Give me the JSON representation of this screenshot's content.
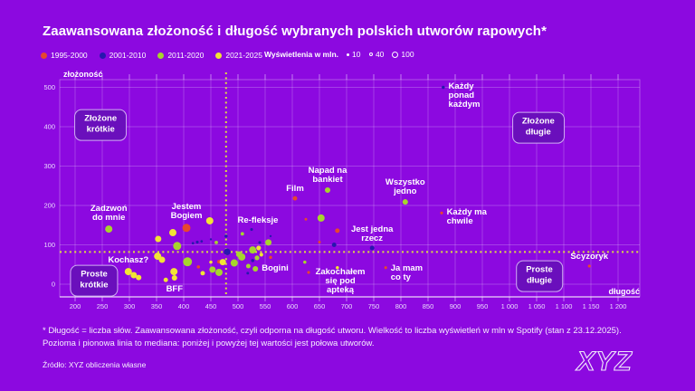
{
  "title": "Zaawansowana złożoność i długość wybranych polskich utworów rapowych*",
  "legend": {
    "periods": [
      {
        "label": "1995-2000",
        "color": "#e8462e"
      },
      {
        "label": "2001-2010",
        "color": "#2817ae"
      },
      {
        "label": "2011-2020",
        "color": "#a6d42e"
      },
      {
        "label": "2021-2025",
        "color": "#f2e434"
      }
    ],
    "size": {
      "title": "Wyświetlenia w mln.",
      "items": [
        {
          "label": "10",
          "mln": 10,
          "filled": true
        },
        {
          "label": "40",
          "mln": 40,
          "filled": false
        },
        {
          "label": "100",
          "mln": 100,
          "filled": false
        }
      ]
    }
  },
  "chart_data": {
    "type": "scatter",
    "xlabel": "długość",
    "ylabel": "złożoność",
    "x_ticks": [
      200,
      250,
      300,
      350,
      400,
      450,
      500,
      550,
      600,
      650,
      700,
      750,
      800,
      850,
      900,
      950,
      1000,
      1050,
      1100,
      1150,
      1200
    ],
    "y_ticks": [
      0,
      100,
      200,
      300,
      400,
      500
    ],
    "x_range": [
      172,
      1240
    ],
    "y_range": [
      -32,
      520
    ],
    "median_x": 478,
    "median_y": 82,
    "grid": true,
    "colors_bg": "#8c09e0",
    "median_color": "#dce23e",
    "quadrants": [
      {
        "label_lines": [
          "Złożone",
          "krótkie"
        ],
        "x": 247,
        "y": 405
      },
      {
        "label_lines": [
          "Złożone",
          "długie"
        ],
        "x": 1053,
        "y": 398
      },
      {
        "label_lines": [
          "Proste",
          "krótkie"
        ],
        "x": 235,
        "y": 9
      },
      {
        "label_lines": [
          "Proste",
          "długie"
        ],
        "x": 1055,
        "y": 21
      }
    ],
    "points": [
      {
        "name": "Zadzwoń do mnie",
        "lines": [
          "Zadzwoń",
          "do mnie"
        ],
        "anchor": "above",
        "period": "2011-2020",
        "x": 262,
        "y": 140,
        "mln": 130
      },
      {
        "name": "Jestem Bogiem",
        "lines": [
          "Jestem",
          "Bogiem"
        ],
        "anchor": "above",
        "period": "1995-2000",
        "x": 405,
        "y": 143,
        "mln": 165
      },
      {
        "name": "Re-fleksje",
        "lines": [
          "Re-fleksje"
        ],
        "anchor": "above",
        "dx": 7,
        "period": "2001-2010",
        "x": 525,
        "y": 139,
        "mln": 20
      },
      {
        "name": "Kochasz?",
        "lines": [
          "Kochasz?"
        ],
        "anchor": "above",
        "period": "2021-2025",
        "x": 298,
        "y": 32,
        "mln": 130
      },
      {
        "period": "2021-2025",
        "x": 308,
        "y": 23,
        "mln": 100
      },
      {
        "period": "2021-2025",
        "x": 317,
        "y": 17,
        "mln": 75
      },
      {
        "name": "BFF",
        "lines": [
          "BFF"
        ],
        "anchor": "below",
        "dy": 3,
        "period": "2021-2025",
        "x": 383,
        "y": 16,
        "mln": 75
      },
      {
        "period": "2021-2025",
        "x": 382,
        "y": 32,
        "mln": 130
      },
      {
        "name": "Bogini",
        "lines": [
          "Bogini"
        ],
        "anchor": "right",
        "period": "2011-2020",
        "x": 532,
        "y": 39,
        "mln": 75
      },
      {
        "name": "Napad na bankiet",
        "lines": [
          "Napad na",
          "bankiet"
        ],
        "anchor": "above",
        "period": "2011-2020",
        "x": 665,
        "y": 239,
        "mln": 75
      },
      {
        "name": "Film",
        "lines": [
          "Film"
        ],
        "anchor": "above",
        "period": "1995-2000",
        "x": 605,
        "y": 218,
        "mln": 50
      },
      {
        "name": "Wszystko jedno",
        "lines": [
          "Wszystko",
          "jedno"
        ],
        "anchor": "above",
        "period": "2011-2020",
        "x": 808,
        "y": 209,
        "mln": 75
      },
      {
        "name": "Każdy ponad każdym",
        "lines": [
          "Każdy",
          "ponad",
          "każdym"
        ],
        "anchor": "right",
        "dy": 9,
        "period": "2001-2010",
        "x": 878,
        "y": 500,
        "mln": 25
      },
      {
        "name": "Każdy ma chwile",
        "lines": [
          "Każdy ma",
          "chwile"
        ],
        "anchor": "right",
        "dy": 5,
        "period": "1995-2000",
        "x": 875,
        "y": 181,
        "mln": 20
      },
      {
        "name": "Jest jedna rzecz",
        "lines": [
          "Jest jedna",
          "rzecz"
        ],
        "anchor": "above",
        "period": "2001-2010",
        "x": 747,
        "y": 92,
        "mln": 50
      },
      {
        "name": "Ja mam co ty",
        "lines": [
          "Ja mam",
          "co ty"
        ],
        "anchor": "right",
        "dy": 6,
        "period": "1995-2000",
        "x": 772,
        "y": 42,
        "mln": 20
      },
      {
        "name": "Zakochałem się pod apteką",
        "lines": [
          "Zakochałem",
          "się pod",
          "apteką"
        ],
        "anchor": "right-below",
        "period": "1995-2000",
        "x": 630,
        "y": 30,
        "mln": 20
      },
      {
        "name": "Scyzoryk",
        "lines": [
          "Scyzoryk"
        ],
        "anchor": "above",
        "period": "1995-2000",
        "x": 1147,
        "y": 46,
        "mln": 20
      },
      {
        "period": "2021-2025",
        "x": 448,
        "y": 161,
        "mln": 130
      },
      {
        "period": "2021-2025",
        "x": 380,
        "y": 131,
        "mln": 130
      },
      {
        "period": "2021-2025",
        "x": 353,
        "y": 115,
        "mln": 100
      },
      {
        "period": "2011-2020",
        "x": 388,
        "y": 97,
        "mln": 165
      },
      {
        "period": "2001-2010",
        "x": 417,
        "y": 104,
        "mln": 15
      },
      {
        "period": "2001-2010",
        "x": 425,
        "y": 107,
        "mln": 20
      },
      {
        "period": "2001-2010",
        "x": 433,
        "y": 109,
        "mln": 15
      },
      {
        "period": "2011-2020",
        "x": 460,
        "y": 106,
        "mln": 30
      },
      {
        "period": "2001-2010",
        "x": 478,
        "y": 122,
        "mln": 25
      },
      {
        "period": "2001-2010",
        "x": 450,
        "y": 114,
        "mln": 12
      },
      {
        "period": "2021-2025",
        "x": 352,
        "y": 71,
        "mln": 130
      },
      {
        "period": "2021-2025",
        "x": 360,
        "y": 62,
        "mln": 100
      },
      {
        "period": "2011-2020",
        "x": 407,
        "y": 57,
        "mln": 200
      },
      {
        "period": "2021-2025",
        "x": 367,
        "y": 11,
        "mln": 50
      },
      {
        "period": "1995-2000",
        "x": 427,
        "y": 44,
        "mln": 25
      },
      {
        "period": "2021-2025",
        "x": 435,
        "y": 28,
        "mln": 50
      },
      {
        "period": "1995-2000",
        "x": 465,
        "y": 57,
        "mln": 35
      },
      {
        "period": "2021-2025",
        "x": 472,
        "y": 56,
        "mln": 100
      },
      {
        "period": "2011-2020",
        "x": 453,
        "y": 37,
        "mln": 100
      },
      {
        "period": "2011-2020",
        "x": 465,
        "y": 30,
        "mln": 130
      },
      {
        "period": "2011-2020",
        "x": 493,
        "y": 54,
        "mln": 130
      },
      {
        "period": "2011-2020",
        "x": 507,
        "y": 69,
        "mln": 130
      },
      {
        "period": "2011-2020",
        "x": 502,
        "y": 76,
        "mln": 90
      },
      {
        "period": "2001-2010",
        "x": 480,
        "y": 82,
        "mln": 110
      },
      {
        "period": "2011-2020",
        "x": 519,
        "y": 46,
        "mln": 50
      },
      {
        "period": "2011-2020",
        "x": 527,
        "y": 87,
        "mln": 130
      },
      {
        "period": "2021-2025",
        "x": 543,
        "y": 75,
        "mln": 35
      },
      {
        "period": "2011-2020",
        "x": 535,
        "y": 67,
        "mln": 55
      },
      {
        "period": "2001-2010",
        "x": 527,
        "y": 60,
        "mln": 25
      },
      {
        "period": "1995-2000",
        "x": 560,
        "y": 68,
        "mln": 25
      },
      {
        "period": "2001-2010",
        "x": 518,
        "y": 28,
        "mln": 18
      },
      {
        "period": "2001-2010",
        "x": 540,
        "y": 106,
        "mln": 20
      },
      {
        "period": "2011-2020",
        "x": 556,
        "y": 106,
        "mln": 100
      },
      {
        "period": "2001-2010",
        "x": 560,
        "y": 122,
        "mln": 12
      },
      {
        "period": "2011-2020",
        "x": 508,
        "y": 128,
        "mln": 30
      },
      {
        "period": "2021-2025",
        "x": 450,
        "y": 56,
        "mln": 25
      },
      {
        "period": "2011-2020",
        "x": 653,
        "y": 168,
        "mln": 130
      },
      {
        "period": "1995-2000",
        "x": 683,
        "y": 136,
        "mln": 50
      },
      {
        "period": "1995-2000",
        "x": 625,
        "y": 165,
        "mln": 18
      },
      {
        "period": "1995-2000",
        "x": 650,
        "y": 107,
        "mln": 18
      },
      {
        "period": "2001-2010",
        "x": 677,
        "y": 100,
        "mln": 50
      },
      {
        "period": "2011-2020",
        "x": 623,
        "y": 56,
        "mln": 25
      },
      {
        "period": "2021-2025",
        "x": 683,
        "y": 42,
        "mln": 25
      },
      {
        "period": "2021-2025",
        "x": 538,
        "y": 92,
        "mln": 55
      }
    ]
  },
  "footnote": {
    "line1": "* Długość = liczba słów. Zaawansowana złożoność, czyli odporna na długość utworu. Wielkość to liczba wyświetleń w mln w Spotify (stan z 23.12.2025).",
    "line2": "Pozioma i pionowa linia to mediana: poniżej i powyżej tej wartości jest połowa utworów."
  },
  "source": "Źródło: XYZ obliczenia własne",
  "logo": "XYZ"
}
